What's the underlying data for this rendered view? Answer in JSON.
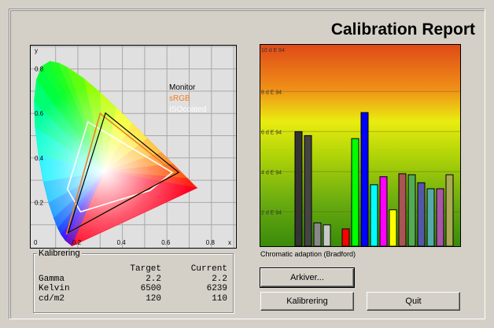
{
  "title": "Calibration Report",
  "chromaticity": {
    "x_axis_label": "x",
    "y_axis_label": "y",
    "x_ticks": [
      "0",
      "0.2",
      "0.4",
      "0.6",
      "0.8"
    ],
    "y_ticks": [
      "0.2",
      "0.4",
      "0.6",
      "0.8"
    ],
    "grid": true,
    "legend": [
      {
        "name": "Monitor",
        "color": "#000000"
      },
      {
        "name": "sRGB",
        "color": "#f08020"
      },
      {
        "name": "ISOcoated",
        "color": "#ffffff"
      }
    ],
    "gamuts": {
      "Monitor": [
        [
          0.653,
          0.335
        ],
        [
          0.324,
          0.602
        ],
        [
          0.156,
          0.064
        ]
      ],
      "sRGB": [
        [
          0.64,
          0.33
        ],
        [
          0.3,
          0.6
        ],
        [
          0.15,
          0.06
        ]
      ],
      "ISOcoated": [
        [
          0.245,
          0.562
        ],
        [
          0.624,
          0.335
        ],
        [
          0.524,
          0.254
        ],
        [
          0.212,
          0.158
        ],
        [
          0.153,
          0.26
        ]
      ]
    }
  },
  "chart_data": {
    "type": "bar",
    "ylabel": "",
    "y_ticks": [
      "2 d E 94",
      "4 d E 94",
      "6 d E 94",
      "8 d E 94",
      "10 d E 94"
    ],
    "ylim": [
      0.33,
      10
    ],
    "caption": "Chromatic adaption (Bradford)",
    "values": [
      6.0,
      5.8,
      1.45,
      1.35,
      null,
      1.15,
      5.65,
      6.95,
      3.35,
      3.75,
      2.1,
      3.9,
      3.85,
      3.45,
      3.15,
      3.15,
      3.85
    ],
    "colors": [
      "#333333",
      "#444444",
      "#888888",
      "#c8c8c8",
      null,
      "#ff0000",
      "#00ff00",
      "#0000ff",
      "#00ffff",
      "#ff00ff",
      "#ffff00",
      "#aa5555",
      "#55aa55",
      "#5555aa",
      "#55aaaa",
      "#aa55aa",
      "#aaaa55"
    ]
  },
  "calibration": {
    "group_label": "Kalibrering",
    "headers": [
      "",
      "Target",
      "Current"
    ],
    "rows": [
      [
        "Gamma",
        "2.2",
        "2.2"
      ],
      [
        "Kelvin",
        "6500",
        "6239"
      ],
      [
        "cd/m2",
        "120",
        "110"
      ]
    ]
  },
  "buttons": {
    "archive": "Arkiver...",
    "calibrate": "Kalibrering",
    "quit": "Quit"
  }
}
